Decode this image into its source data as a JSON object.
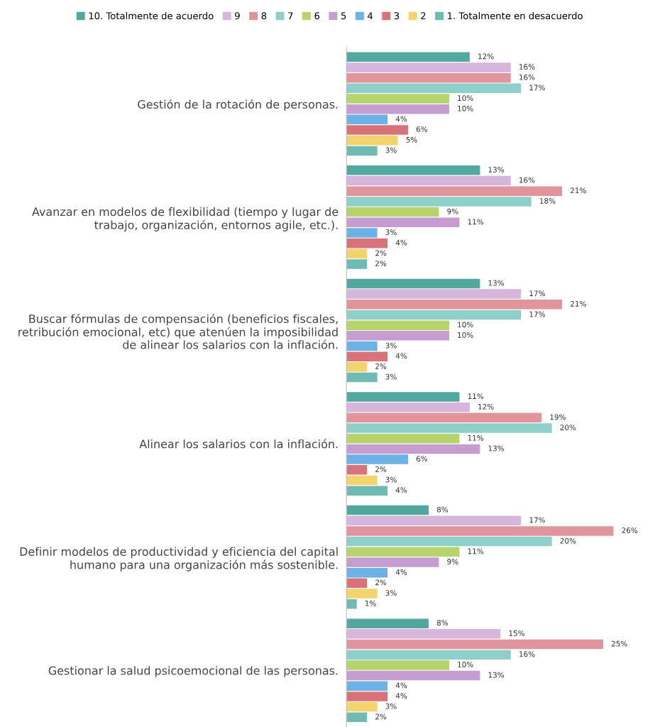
{
  "chart_data": {
    "type": "bar",
    "orientation": "horizontal",
    "legend": "top",
    "categories": [
      "Gestión de la rotación de personas.",
      "Avanzar en modelos de flexibilidad (tiempo y lugar de\ntrabajo, organización, entornos agile, etc.).",
      "Buscar fórmulas de compensación (beneficios fiscales,\nretribución emocional, etc) que atenúen la imposibilidad\nde alinear los salarios con la inflación.",
      "Alinear los salarios con la inflación.",
      "Definir modelos de productividad y eficiencia del capital\nhumano para una organización más sostenible.",
      "Gestionar la salud psicoemocional de las personas."
    ],
    "series": [
      {
        "name": "10. Totalmente de acuerdo",
        "color": "#52a89f",
        "values": [
          12,
          13,
          13,
          11,
          8,
          8
        ],
        "value_labels": [
          "12%",
          "13%",
          "13%",
          "11%",
          "8%",
          "8%"
        ]
      },
      {
        "name": "9",
        "color": "#d6b6db",
        "values": [
          16,
          16,
          17,
          12,
          17,
          15
        ],
        "value_labels": [
          "16%",
          "16%",
          "17%",
          "12%",
          "17%",
          "15%"
        ]
      },
      {
        "name": "8",
        "color": "#e0949c",
        "values": [
          16,
          21,
          21,
          19,
          26,
          25
        ],
        "value_labels": [
          "16%",
          "21%",
          "21%",
          "19%",
          "26%",
          "25%"
        ]
      },
      {
        "name": "7",
        "color": "#8fcfca",
        "values": [
          17,
          18,
          17,
          20,
          20,
          16
        ],
        "value_labels": [
          "17%",
          "18%",
          "17%",
          "20%",
          "20%",
          "16%"
        ]
      },
      {
        "name": "6",
        "color": "#b7d36d",
        "values": [
          10,
          9,
          10,
          11,
          11,
          10
        ],
        "value_labels": [
          "10%",
          "9%",
          "10%",
          "11%",
          "11%",
          "10%"
        ]
      },
      {
        "name": "5",
        "color": "#c59dd1",
        "values": [
          10,
          11,
          10,
          13,
          9,
          13
        ],
        "value_labels": [
          "10%",
          "11%",
          "10%",
          "13%",
          "9%",
          "13%"
        ]
      },
      {
        "name": "4",
        "color": "#6cb2e4",
        "values": [
          4,
          3,
          3,
          6,
          4,
          4
        ],
        "value_labels": [
          "4%",
          "3%",
          "3%",
          "6%",
          "4%",
          "4%"
        ]
      },
      {
        "name": "3",
        "color": "#d8737c",
        "values": [
          6,
          4,
          4,
          2,
          2,
          4
        ],
        "value_labels": [
          "6%",
          "4%",
          "4%",
          "2%",
          "2%",
          "4%"
        ]
      },
      {
        "name": "2",
        "color": "#f4d26e",
        "values": [
          5,
          2,
          2,
          3,
          3,
          3
        ],
        "value_labels": [
          "5%",
          "2%",
          "2%",
          "3%",
          "3%",
          "3%"
        ]
      },
      {
        "name": "1. Totalmente en desacuerdo",
        "color": "#6fbab3",
        "values": [
          3,
          2,
          3,
          4,
          1,
          2
        ],
        "value_labels": [
          "3%",
          "2%",
          "3%",
          "4%",
          "1%",
          "2%"
        ]
      }
    ]
  }
}
